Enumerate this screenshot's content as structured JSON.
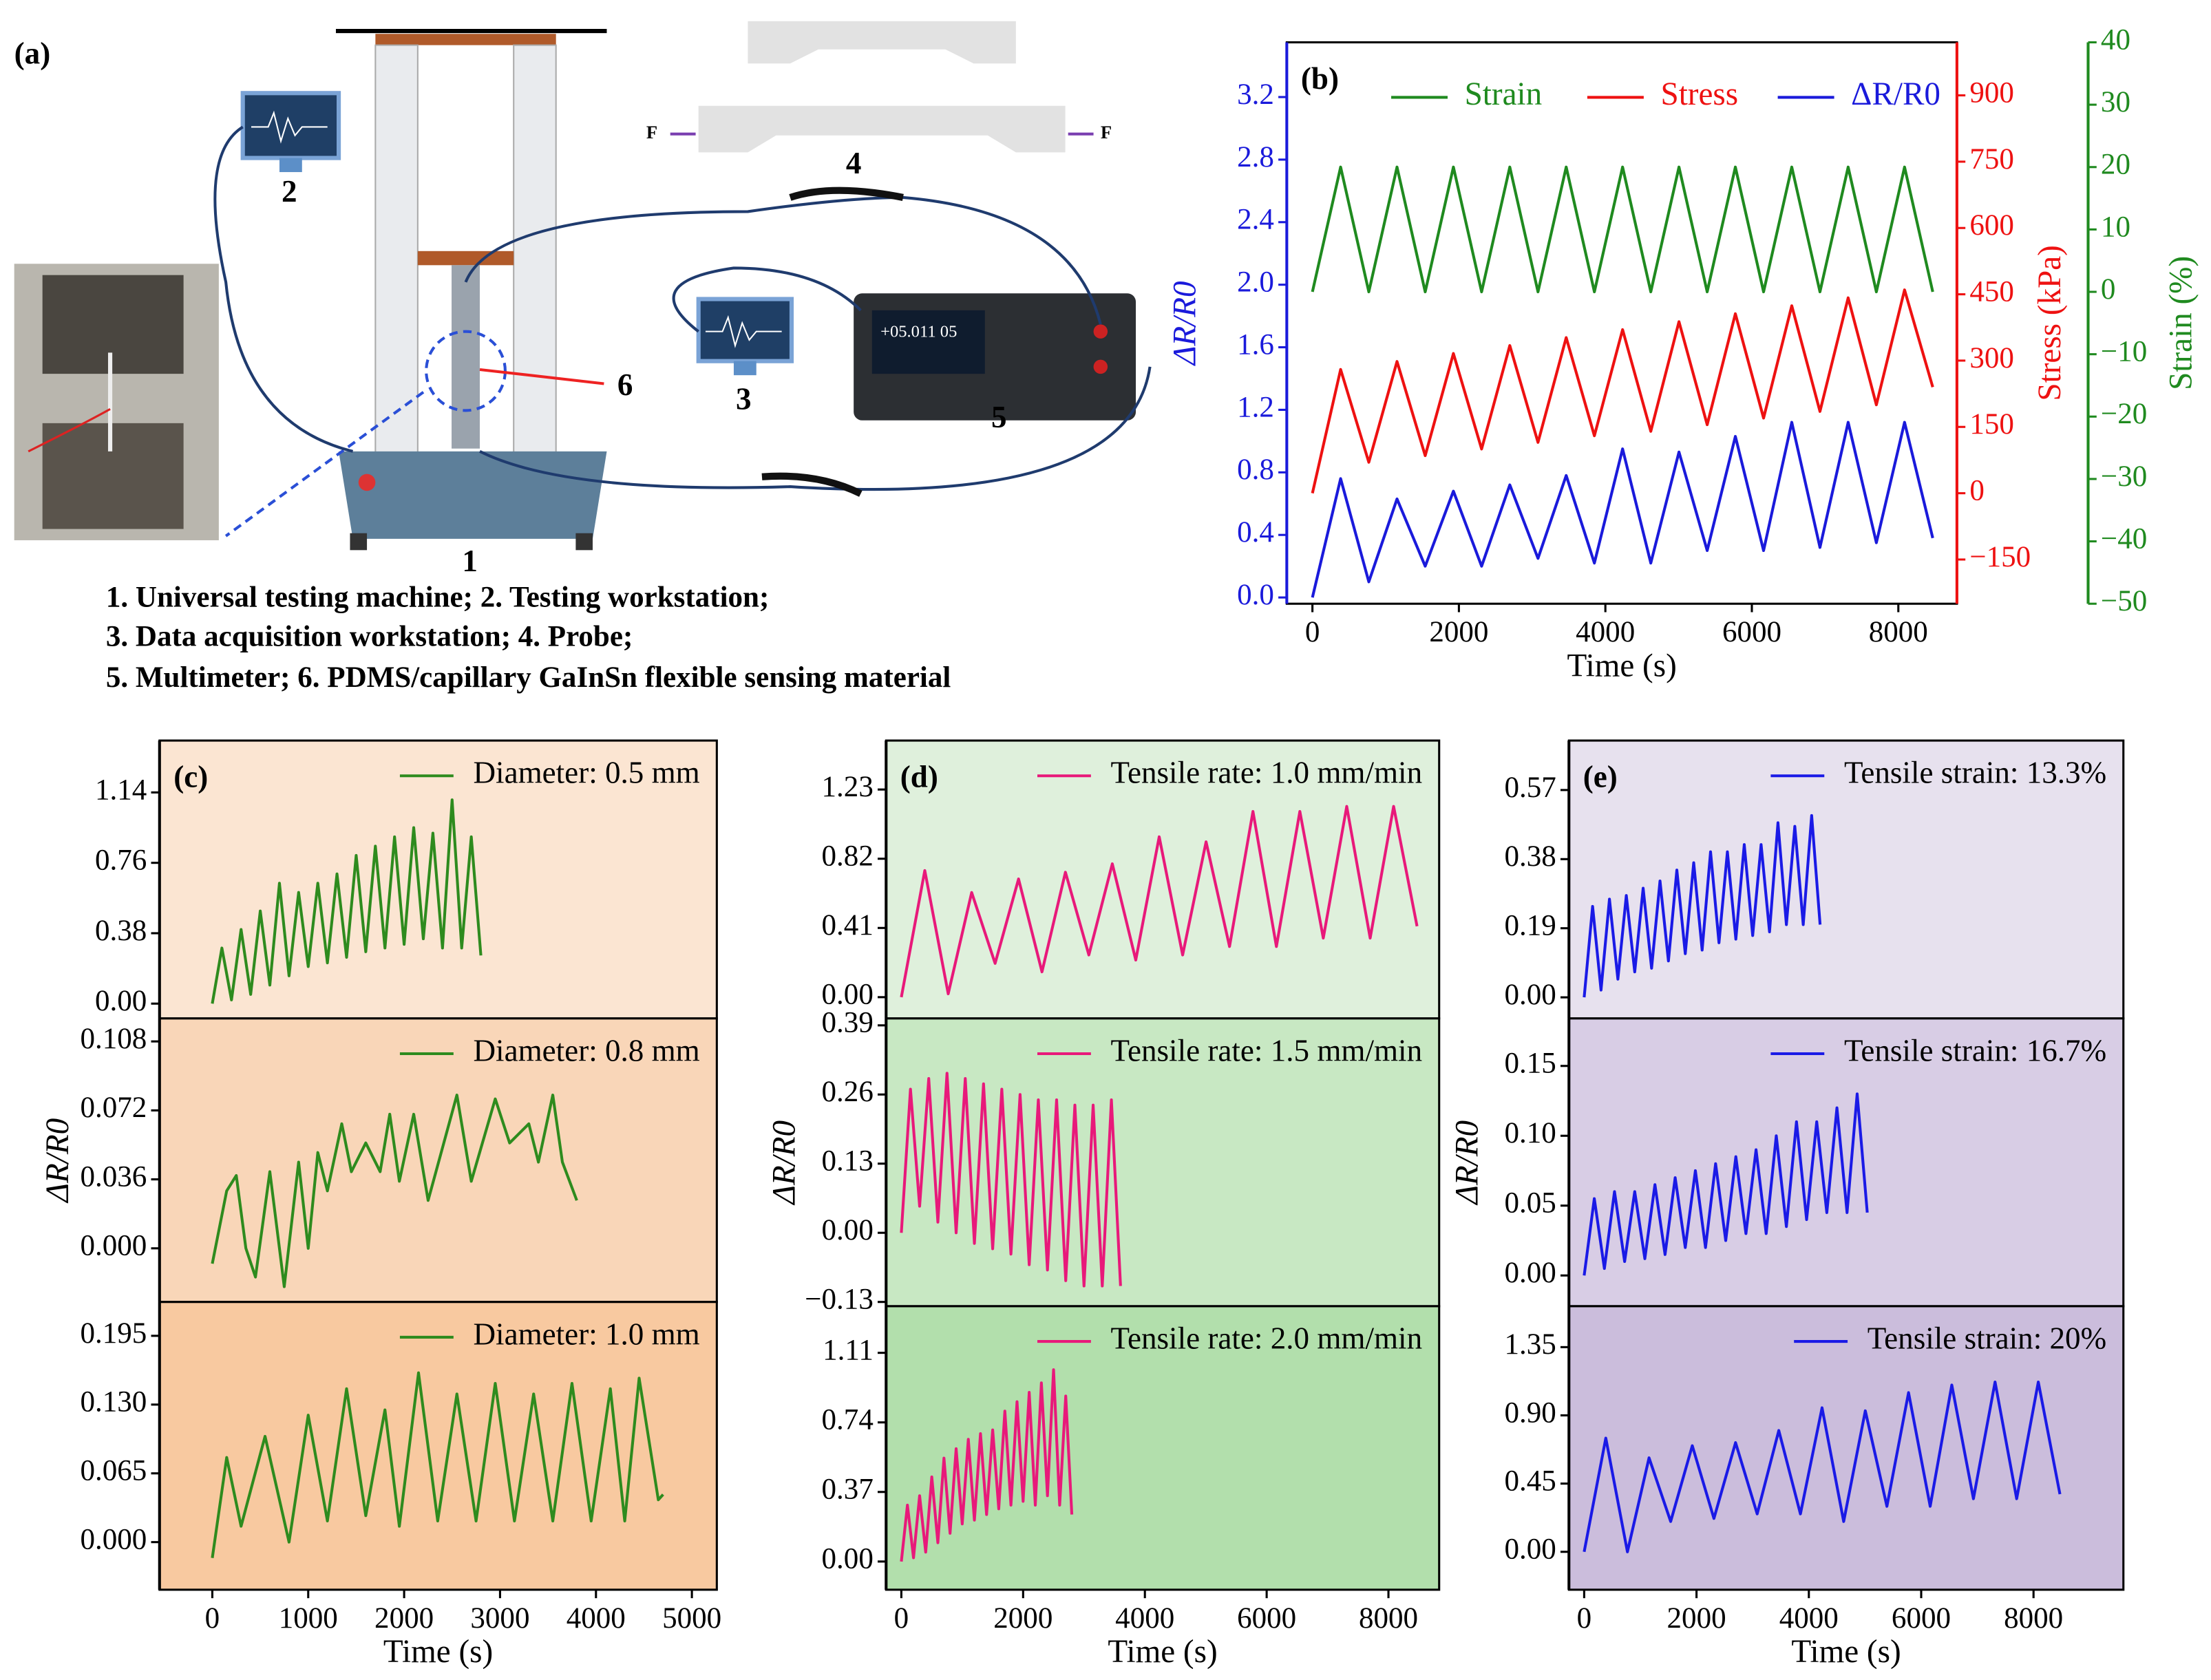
{
  "diagram": {
    "label": "(a)",
    "numbers": [
      "1",
      "2",
      "3",
      "4",
      "5",
      "6"
    ],
    "force": [
      "F",
      "F"
    ],
    "display": "+05.011 05",
    "caption": [
      "1. Universal testing machine; 2.  Testing workstation;",
      "3. Data acquisition workstation; 4. Probe;",
      "5. Multimeter; 6. PDMS/capillary GaInSn flexible sensing material"
    ]
  },
  "chart_data": [
    {
      "type": "line",
      "label": "(b)",
      "xlabel": "Time (s)",
      "ylabel": "ΔR/R0",
      "y2label": "Stress (kPa)",
      "y3label": "Strain (%)",
      "x": [
        0,
        385,
        770,
        1155,
        1540,
        1925,
        2310,
        2695,
        3080,
        3465,
        3850,
        4235,
        4620,
        5005,
        5390,
        5775,
        6160,
        6545,
        6930,
        7315,
        7700,
        8085,
        8470
      ],
      "xlim": [
        -350,
        8800
      ],
      "xticks": [
        0,
        2000,
        4000,
        6000,
        8000
      ],
      "ylim": [
        -0.04,
        3.55
      ],
      "yticks": [
        {
          "value": 0,
          "label": "0.0"
        },
        0.4,
        0.8,
        1.2,
        1.6,
        {
          "value": 2,
          "label": "2.0"
        },
        2.4,
        2.8,
        3.2
      ],
      "y2lim": [
        -250,
        1020
      ],
      "y2ticks": [
        {
          "value": -150,
          "label": "−150"
        },
        0,
        150,
        300,
        450,
        600,
        750,
        900
      ],
      "y3lim": [
        -50,
        40
      ],
      "y3ticks": [
        {
          "value": -50,
          "label": "−50"
        },
        {
          "value": -40,
          "label": "−40"
        },
        {
          "value": -30,
          "label": "−30"
        },
        {
          "value": -20,
          "label": "−20"
        },
        {
          "value": -10,
          "label": "−10"
        },
        0,
        10,
        20,
        30,
        40
      ],
      "series": [
        {
          "name": "Strain",
          "color": "#1f8a1f",
          "axis": "y3",
          "values": [
            0,
            20,
            0,
            20,
            0,
            20,
            0,
            20,
            0,
            20,
            0,
            20,
            0,
            20,
            0,
            20,
            0,
            20,
            0,
            20,
            0,
            20,
            0
          ]
        },
        {
          "name": "Stress",
          "color": "#ee1111",
          "axis": "y2",
          "values": [
            0,
            280,
            70,
            298,
            85,
            316,
            100,
            334,
            115,
            352,
            130,
            370,
            140,
            388,
            155,
            406,
            170,
            424,
            185,
            442,
            200,
            460,
            240
          ]
        },
        {
          "name": "ΔR/R0",
          "color": "#1a1adb",
          "values": [
            0,
            0.76,
            0.1,
            0.63,
            0.2,
            0.68,
            0.2,
            0.72,
            0.25,
            0.78,
            0.22,
            0.95,
            0.22,
            0.93,
            0.3,
            1.03,
            0.3,
            1.12,
            0.32,
            1.12,
            0.35,
            1.12,
            0.38
          ]
        }
      ]
    },
    {
      "type": "line",
      "label": "(c)",
      "background": "#fbe5d2",
      "x": [
        0,
        100,
        200,
        300,
        400,
        500,
        600,
        700,
        800,
        900,
        1000,
        1100,
        1200,
        1300,
        1400,
        1500,
        1600,
        1700,
        1800,
        1900,
        2000,
        2100,
        2200,
        2300,
        2400,
        2500,
        2600,
        2700,
        2800
      ],
      "xlim": [
        -550,
        5260
      ],
      "xticks": [
        0,
        1000,
        2000,
        3000,
        4000,
        5000
      ],
      "ylim": [
        -0.08,
        1.42
      ],
      "yticks": [
        {
          "value": 0,
          "label": "0.00"
        },
        0.38,
        0.76,
        1.14
      ],
      "series": [
        {
          "name": "Diameter: 0.5 mm",
          "color": "#2e8b1e",
          "values": [
            0,
            0.3,
            0.02,
            0.4,
            0.05,
            0.5,
            0.1,
            0.65,
            0.15,
            0.6,
            0.2,
            0.65,
            0.22,
            0.7,
            0.25,
            0.8,
            0.28,
            0.85,
            0.3,
            0.9,
            0.32,
            0.95,
            0.35,
            0.92,
            0.3,
            1.1,
            0.3,
            0.9,
            0.26
          ]
        }
      ]
    },
    {
      "type": "line",
      "background": "#f9d6b8",
      "ylabel": "ΔR/R0",
      "x": [
        0,
        150,
        250,
        350,
        450,
        600,
        750,
        900,
        1000,
        1100,
        1200,
        1350,
        1450,
        1600,
        1750,
        1850,
        1950,
        2100,
        2250,
        2550,
        2700,
        2950,
        3100,
        3300,
        3400,
        3550,
        3650,
        3800
      ],
      "xlim": [
        -550,
        5260
      ],
      "xticks": [
        0,
        1000,
        2000,
        3000,
        4000,
        5000
      ],
      "ylim": [
        -0.028,
        0.12
      ],
      "yticks": [
        {
          "value": 0,
          "label": "0.000"
        },
        0.036,
        0.072,
        0.108
      ],
      "series": [
        {
          "name": "Diameter: 0.8 mm",
          "color": "#2e8b1e",
          "values": [
            -0.008,
            0.03,
            0.038,
            0.0,
            -0.015,
            0.04,
            -0.02,
            0.045,
            0.0,
            0.05,
            0.03,
            0.065,
            0.04,
            0.055,
            0.04,
            0.07,
            0.035,
            0.07,
            0.025,
            0.08,
            0.035,
            0.078,
            0.055,
            0.065,
            0.045,
            0.08,
            0.045,
            0.025
          ]
        }
      ]
    },
    {
      "type": "line",
      "background": "#f8c9a0",
      "xlabel": "Time (s)",
      "x": [
        0,
        150,
        300,
        550,
        800,
        1000,
        1200,
        1400,
        1600,
        1800,
        1950,
        2150,
        2350,
        2550,
        2750,
        2950,
        3150,
        3350,
        3550,
        3750,
        3950,
        4150,
        4300,
        4450,
        4650,
        4700
      ],
      "xlim": [
        -550,
        5260
      ],
      "xticks": [
        0,
        1000,
        2000,
        3000,
        4000,
        5000
      ],
      "ylim": [
        -0.045,
        0.227
      ],
      "yticks": [
        {
          "value": 0,
          "label": "0.000"
        },
        0.065,
        {
          "value": 0.13,
          "label": "0.130"
        },
        0.195
      ],
      "series": [
        {
          "name": "Diameter: 1.0 mm",
          "color": "#2e8b1e",
          "values": [
            -0.015,
            0.08,
            0.015,
            0.1,
            0.0,
            0.12,
            0.02,
            0.145,
            0.025,
            0.125,
            0.015,
            0.16,
            0.02,
            0.14,
            0.02,
            0.15,
            0.02,
            0.14,
            0.02,
            0.15,
            0.02,
            0.145,
            0.02,
            0.155,
            0.04,
            0.045
          ]
        }
      ]
    },
    {
      "type": "line",
      "label": "(d)",
      "background": "#dff0dc",
      "x": [
        0,
        385,
        770,
        1155,
        1540,
        1925,
        2310,
        2695,
        3080,
        3465,
        3850,
        4235,
        4620,
        5005,
        5390,
        5775,
        6160,
        6545,
        6930,
        7315,
        7700,
        8085,
        8470
      ],
      "xlim": [
        -250,
        8833
      ],
      "xticks": [
        0,
        2000,
        4000,
        6000,
        8000
      ],
      "ylim": [
        -0.126,
        1.52
      ],
      "yticks": [
        {
          "value": 0,
          "label": "0.00"
        },
        0.41,
        0.82,
        1.23
      ],
      "series": [
        {
          "name": "Tensile rate: 1.0 mm/min",
          "color": "#e8197a",
          "values": [
            0,
            0.75,
            0.02,
            0.62,
            0.2,
            0.7,
            0.15,
            0.74,
            0.25,
            0.79,
            0.22,
            0.95,
            0.25,
            0.92,
            0.3,
            1.1,
            0.3,
            1.1,
            0.35,
            1.13,
            0.35,
            1.13,
            0.42
          ]
        }
      ]
    },
    {
      "type": "line",
      "background": "#c8e8c3",
      "ylabel": "ΔR/R0",
      "x": [
        0,
        150,
        300,
        450,
        600,
        750,
        900,
        1050,
        1200,
        1350,
        1500,
        1650,
        1800,
        1950,
        2100,
        2250,
        2400,
        2550,
        2700,
        2850,
        3000,
        3150,
        3300,
        3450,
        3600
      ],
      "xlim": [
        -250,
        8833
      ],
      "xticks": [
        0,
        2000,
        4000,
        6000,
        8000
      ],
      "ylim": [
        -0.138,
        0.403
      ],
      "yticks": [
        {
          "value": -0.13,
          "label": "−0.13"
        },
        {
          "value": 0,
          "label": "0.00"
        },
        0.13,
        0.26,
        0.39
      ],
      "series": [
        {
          "name": "Tensile rate:  1.5 mm/min",
          "color": "#e8197a",
          "values": [
            0,
            0.27,
            0.05,
            0.29,
            0.02,
            0.3,
            0.0,
            0.29,
            -0.02,
            0.28,
            -0.03,
            0.27,
            -0.04,
            0.26,
            -0.06,
            0.25,
            -0.07,
            0.25,
            -0.09,
            0.24,
            -0.1,
            0.24,
            -0.1,
            0.25,
            -0.1
          ]
        }
      ]
    },
    {
      "type": "line",
      "background": "#b2dfac",
      "xlabel": "Time (s)",
      "x": [
        0,
        100,
        200,
        300,
        400,
        500,
        600,
        700,
        800,
        900,
        1000,
        1100,
        1200,
        1300,
        1400,
        1500,
        1600,
        1700,
        1800,
        1900,
        2000,
        2100,
        2200,
        2300,
        2400,
        2500,
        2600,
        2700,
        2800
      ],
      "xlim": [
        -250,
        8833
      ],
      "xticks": [
        0,
        2000,
        4000,
        6000,
        8000
      ],
      "ylim": [
        -0.15,
        1.358
      ],
      "yticks": [
        {
          "value": 0,
          "label": "0.00"
        },
        0.37,
        0.74,
        1.11
      ],
      "series": [
        {
          "name": "Tensile rate: 2.0 mm/min",
          "color": "#e8197a",
          "values": [
            0,
            0.3,
            0.02,
            0.35,
            0.05,
            0.45,
            0.1,
            0.55,
            0.15,
            0.6,
            0.2,
            0.65,
            0.22,
            0.68,
            0.25,
            0.7,
            0.28,
            0.8,
            0.3,
            0.85,
            0.32,
            0.9,
            0.3,
            0.95,
            0.35,
            1.02,
            0.3,
            0.88,
            0.25
          ]
        }
      ]
    },
    {
      "type": "line",
      "label": "(e)",
      "background": "#e7e1ee",
      "x": [
        0,
        150,
        300,
        450,
        600,
        750,
        900,
        1050,
        1200,
        1350,
        1500,
        1650,
        1800,
        1950,
        2100,
        2250,
        2400,
        2550,
        2700,
        2850,
        3000,
        3150,
        3300,
        3450,
        3600,
        3750,
        3900,
        4050,
        4200
      ],
      "xlim": [
        -271,
        9600
      ],
      "xticks": [
        0,
        2000,
        4000,
        6000,
        8000
      ],
      "ylim": [
        -0.058,
        0.706
      ],
      "yticks": [
        {
          "value": 0,
          "label": "0.00"
        },
        0.19,
        0.38,
        0.57
      ],
      "series": [
        {
          "name": "Tensile strain: 13.3%",
          "color": "#1a1ae6",
          "values": [
            0,
            0.25,
            0.02,
            0.27,
            0.05,
            0.28,
            0.07,
            0.3,
            0.08,
            0.32,
            0.1,
            0.35,
            0.12,
            0.37,
            0.13,
            0.4,
            0.15,
            0.4,
            0.16,
            0.42,
            0.17,
            0.42,
            0.18,
            0.48,
            0.2,
            0.47,
            0.2,
            0.5,
            0.2
          ]
        }
      ]
    },
    {
      "type": "line",
      "background": "#d8cde5",
      "ylabel": "ΔR/R0",
      "x": [
        0,
        180,
        360,
        540,
        720,
        900,
        1080,
        1260,
        1440,
        1620,
        1800,
        1980,
        2160,
        2340,
        2520,
        2700,
        2880,
        3060,
        3240,
        3420,
        3600,
        3780,
        3960,
        4140,
        4320,
        4500,
        4680,
        4860,
        5040
      ],
      "xlim": [
        -271,
        9600
      ],
      "xticks": [
        0,
        2000,
        4000,
        6000,
        8000
      ],
      "ylim": [
        -0.022,
        0.184
      ],
      "yticks": [
        {
          "value": 0,
          "label": "0.00"
        },
        0.05,
        {
          "value": 0.1,
          "label": "0.10"
        },
        0.15
      ],
      "series": [
        {
          "name": "Tensile strain: 16.7%",
          "color": "#1a1ae6",
          "values": [
            0,
            0.055,
            0.005,
            0.06,
            0.01,
            0.06,
            0.012,
            0.065,
            0.015,
            0.07,
            0.02,
            0.075,
            0.02,
            0.08,
            0.025,
            0.085,
            0.03,
            0.09,
            0.03,
            0.1,
            0.035,
            0.11,
            0.04,
            0.11,
            0.045,
            0.12,
            0.045,
            0.13,
            0.045
          ]
        }
      ]
    },
    {
      "type": "line",
      "background": "#cbbddc",
      "xlabel": "Time (s)",
      "x": [
        0,
        385,
        770,
        1155,
        1540,
        1925,
        2310,
        2695,
        3080,
        3465,
        3850,
        4235,
        4620,
        5005,
        5390,
        5775,
        6160,
        6545,
        6930,
        7315,
        7700,
        8085,
        8470
      ],
      "xlim": [
        -271,
        9600
      ],
      "xticks": [
        0,
        2000,
        4000,
        6000,
        8000
      ],
      "ylim": [
        -0.25,
        1.62
      ],
      "yticks": [
        {
          "value": 0,
          "label": "0.00"
        },
        0.45,
        {
          "value": 0.9,
          "label": "0.90"
        },
        1.35
      ],
      "series": [
        {
          "name": "Tensile strain: 20%",
          "color": "#1a1ae6",
          "values": [
            0,
            0.75,
            0.0,
            0.62,
            0.2,
            0.7,
            0.22,
            0.72,
            0.25,
            0.8,
            0.25,
            0.95,
            0.2,
            0.93,
            0.3,
            1.05,
            0.3,
            1.1,
            0.35,
            1.12,
            0.35,
            1.12,
            0.38
          ]
        }
      ]
    }
  ]
}
